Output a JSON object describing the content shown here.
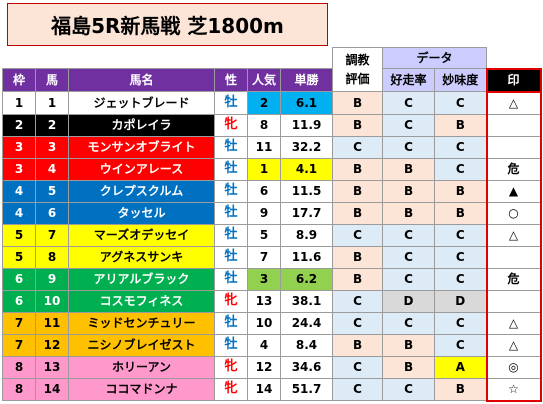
{
  "title": "福島5R新馬戦  芝1800m",
  "headers": {
    "group_top": {
      "chokyo": "調教",
      "data": "データ"
    },
    "waku": "枠",
    "uma": "馬",
    "bamei": "馬名",
    "sei": "性",
    "ninki": "人気",
    "tansho": "単勝",
    "hyoka": "評価",
    "kosouritsu": "好走率",
    "mimido": "妙味度",
    "shirushi": "印"
  },
  "colors": {
    "waku": {
      "1": {
        "bg": "#ffffff",
        "fg": "#000000"
      },
      "2": {
        "bg": "#000000",
        "fg": "#ffffff"
      },
      "3": {
        "bg": "#ff0000",
        "fg": "#ffffff"
      },
      "4": {
        "bg": "#0070c0",
        "fg": "#ffffff"
      },
      "5": {
        "bg": "#ffff00",
        "fg": "#000000"
      },
      "6": {
        "bg": "#00b050",
        "fg": "#ffffff"
      },
      "7": {
        "bg": "#ffc000",
        "fg": "#000000"
      },
      "8": {
        "bg": "#ff99cc",
        "fg": "#000000"
      }
    }
  },
  "rows": [
    {
      "waku": "1",
      "uma": "1",
      "name": "ジェットブレード",
      "sex": "牡",
      "ninki": "2",
      "tansho": "6.1",
      "hyoka": "B",
      "kosou": "C",
      "mimi": "C",
      "mark": "△",
      "hl": "cyan"
    },
    {
      "waku": "2",
      "uma": "2",
      "name": "カポレイラ",
      "sex": "牝",
      "ninki": "8",
      "tansho": "11.9",
      "hyoka": "B",
      "kosou": "C",
      "mimi": "B",
      "mark": "",
      "hl": ""
    },
    {
      "waku": "3",
      "uma": "3",
      "name": "モンサンオブライト",
      "sex": "牡",
      "ninki": "11",
      "tansho": "32.2",
      "hyoka": "C",
      "kosou": "C",
      "mimi": "C",
      "mark": "",
      "hl": ""
    },
    {
      "waku": "3",
      "uma": "4",
      "name": "ウインアレース",
      "sex": "牡",
      "ninki": "1",
      "tansho": "4.1",
      "hyoka": "B",
      "kosou": "B",
      "mimi": "C",
      "mark": "危",
      "hl": "yellow"
    },
    {
      "waku": "4",
      "uma": "5",
      "name": "クレプスクルム",
      "sex": "牡",
      "ninki": "6",
      "tansho": "11.5",
      "hyoka": "B",
      "kosou": "B",
      "mimi": "B",
      "mark": "▲",
      "hl": ""
    },
    {
      "waku": "4",
      "uma": "6",
      "name": "タッセル",
      "sex": "牡",
      "ninki": "9",
      "tansho": "17.7",
      "hyoka": "B",
      "kosou": "B",
      "mimi": "B",
      "mark": "○",
      "hl": ""
    },
    {
      "waku": "5",
      "uma": "7",
      "name": "マーズオデッセイ",
      "sex": "牡",
      "ninki": "5",
      "tansho": "8.9",
      "hyoka": "C",
      "kosou": "C",
      "mimi": "C",
      "mark": "△",
      "hl": ""
    },
    {
      "waku": "5",
      "uma": "8",
      "name": "アグネスサンキ",
      "sex": "牡",
      "ninki": "7",
      "tansho": "11.6",
      "hyoka": "B",
      "kosou": "C",
      "mimi": "C",
      "mark": "",
      "hl": ""
    },
    {
      "waku": "6",
      "uma": "9",
      "name": "アリアルブラック",
      "sex": "牡",
      "ninki": "3",
      "tansho": "6.2",
      "hyoka": "B",
      "kosou": "C",
      "mimi": "C",
      "mark": "危",
      "hl": "green"
    },
    {
      "waku": "6",
      "uma": "10",
      "name": "コスモフィネス",
      "sex": "牝",
      "ninki": "13",
      "tansho": "38.1",
      "hyoka": "C",
      "kosou": "D",
      "mimi": "D",
      "mark": "",
      "hl": ""
    },
    {
      "waku": "7",
      "uma": "11",
      "name": "ミッドセンチュリー",
      "sex": "牡",
      "ninki": "10",
      "tansho": "24.4",
      "hyoka": "C",
      "kosou": "C",
      "mimi": "C",
      "mark": "△",
      "hl": ""
    },
    {
      "waku": "7",
      "uma": "12",
      "name": "ニシノブレイゼスト",
      "sex": "牡",
      "ninki": "4",
      "tansho": "8.4",
      "hyoka": "B",
      "kosou": "B",
      "mimi": "C",
      "mark": "△",
      "hl": ""
    },
    {
      "waku": "8",
      "uma": "13",
      "name": "ホリーアン",
      "sex": "牝",
      "ninki": "12",
      "tansho": "34.6",
      "hyoka": "C",
      "kosou": "B",
      "mimi": "A",
      "mark": "◎",
      "hl": ""
    },
    {
      "waku": "8",
      "uma": "14",
      "name": "ココマドンナ",
      "sex": "牝",
      "ninki": "14",
      "tansho": "51.7",
      "hyoka": "C",
      "kosou": "C",
      "mimi": "B",
      "mark": "☆",
      "hl": ""
    }
  ]
}
